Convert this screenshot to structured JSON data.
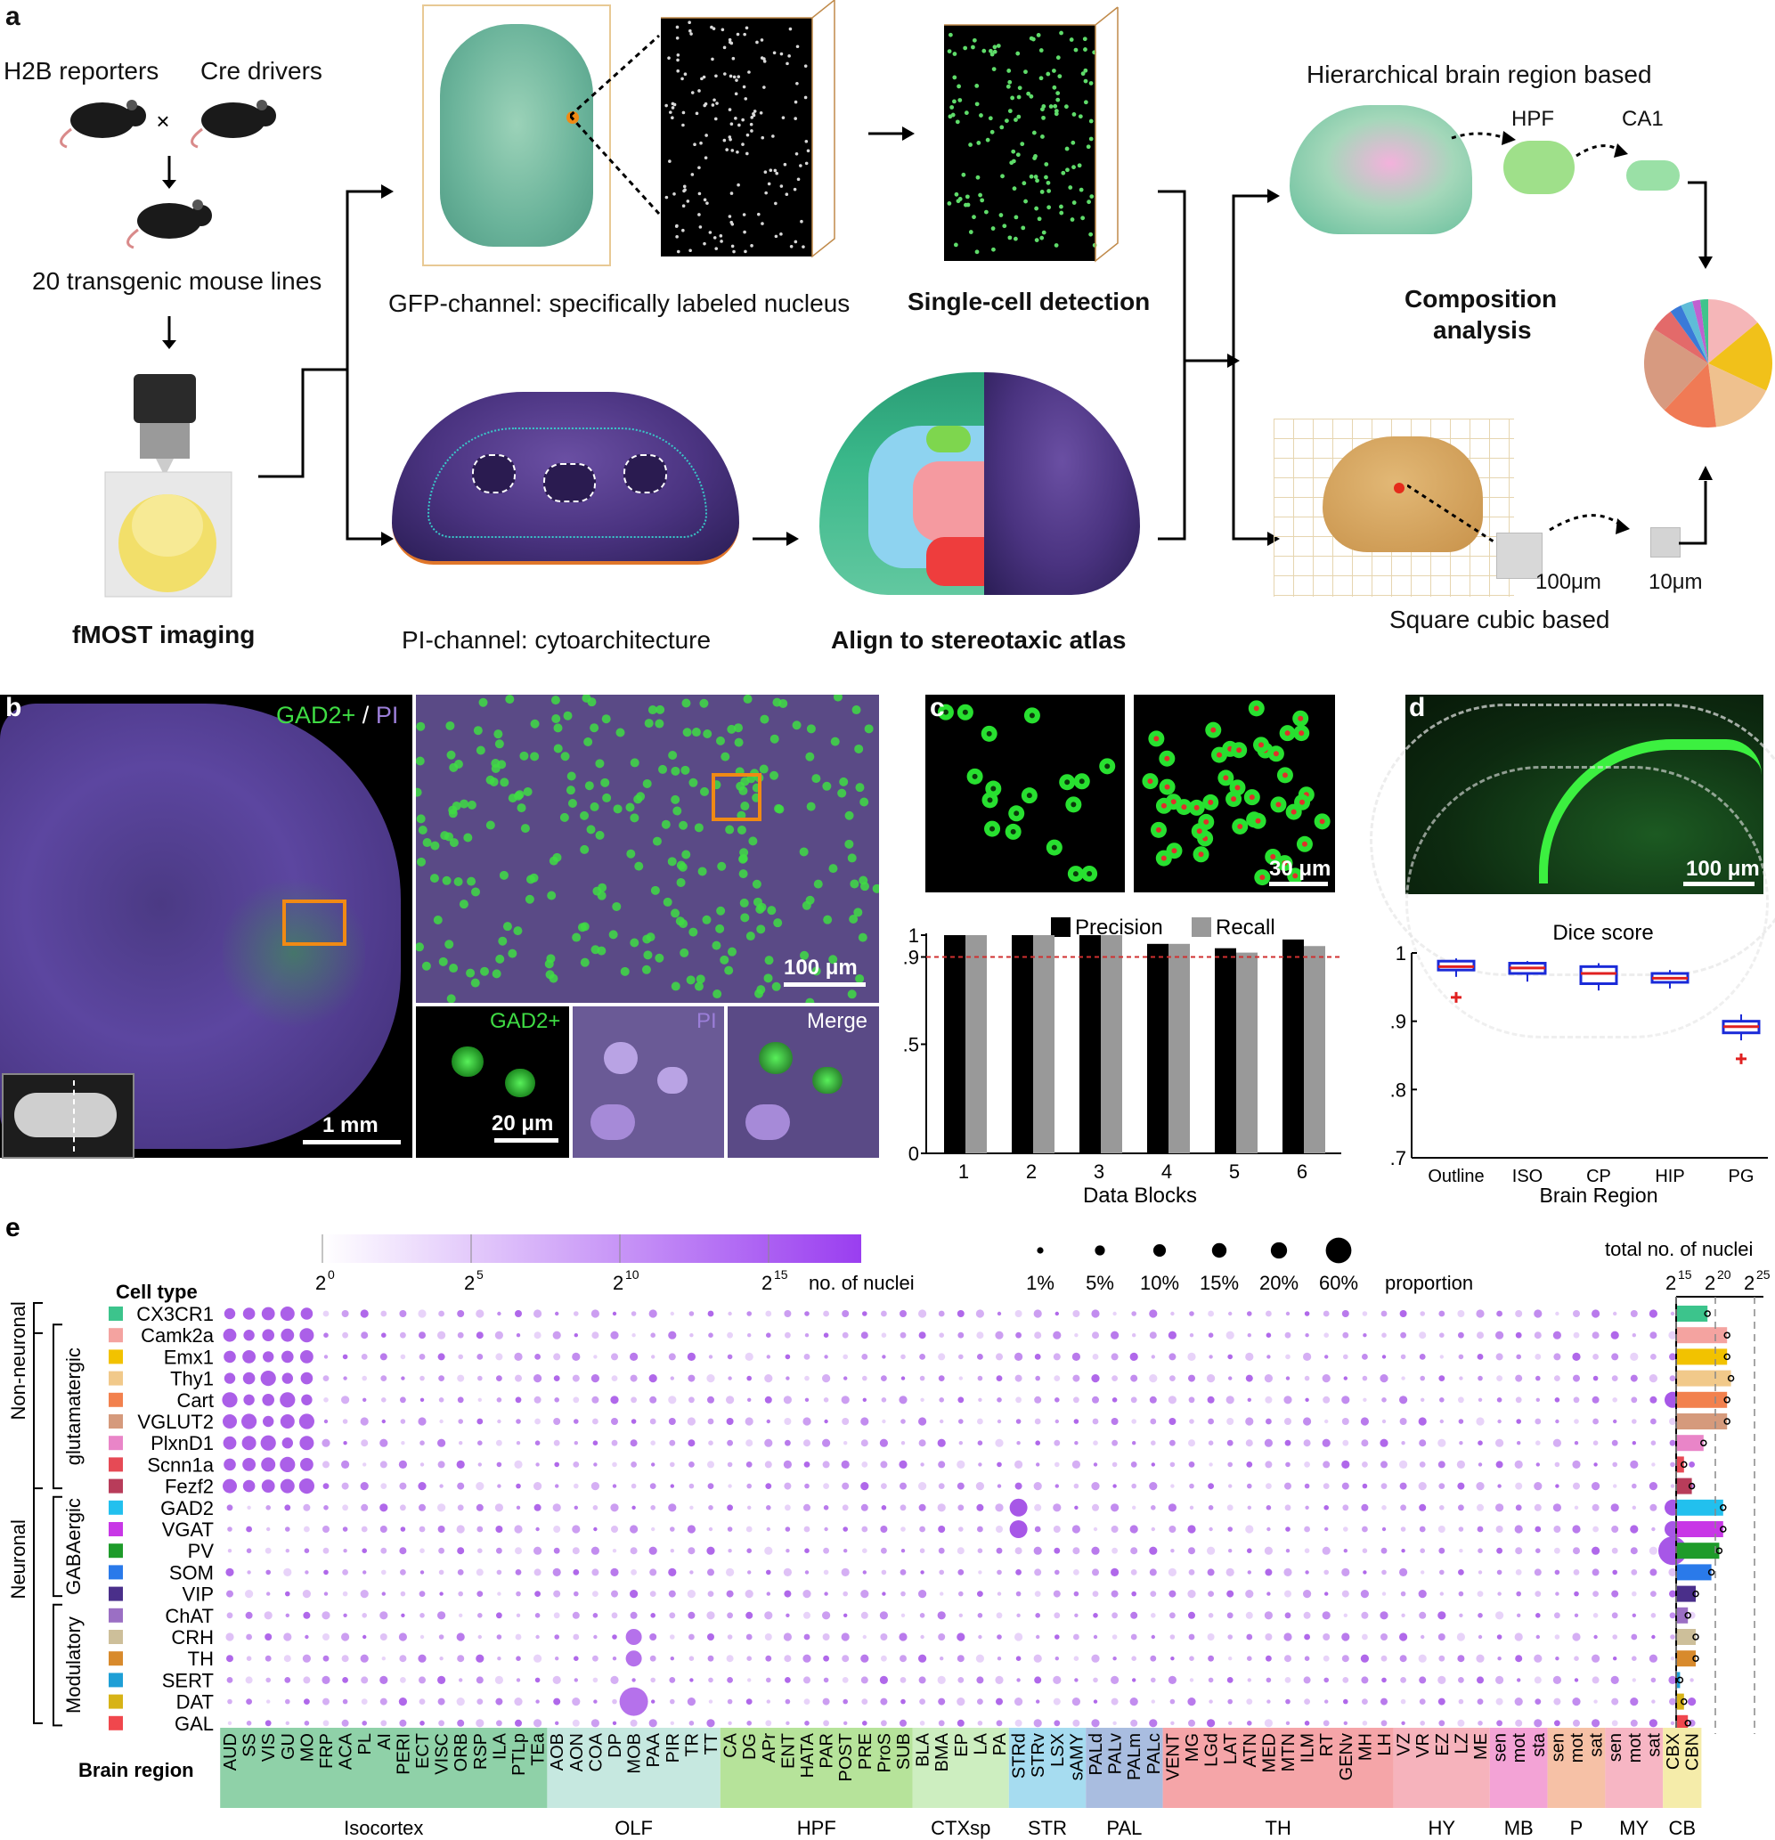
{
  "panel_a": {
    "letter": "a",
    "h2b": "H2B reporters",
    "cre": "Cre drivers",
    "times": "×",
    "lines": "20 transgenic mouse lines",
    "fmost": "fMOST imaging",
    "gfp": "GFP-channel: specifically labeled nucleus",
    "single_cell": "Single-cell detection",
    "pi": "PI-channel: cytoarchitecture",
    "align": "Align to stereotaxic atlas",
    "hier": "Hierarchical brain region based",
    "hpf": "HPF",
    "ca1": "CA1",
    "composition1": "Composition",
    "composition2": "analysis",
    "um100": "100μm",
    "um10": "10μm",
    "square": "Square cubic based"
  },
  "panel_b": {
    "letter": "b",
    "gad": "GAD2+",
    "slash": " / ",
    "pi": "PI",
    "scale_1mm": "1 mm",
    "scale_100um": "100 μm",
    "inset_gad": "GAD2+",
    "inset_pi": "PI",
    "inset_merge": "Merge",
    "scale_20um": "20 μm"
  },
  "panel_c": {
    "letter": "c",
    "scale_30um": "30 μm"
  },
  "panel_d": {
    "letter": "d",
    "scale_100um": "100 μm"
  },
  "chart_data": [
    {
      "type": "bar",
      "legend": [
        "Precision",
        "Recall"
      ],
      "categories": [
        "1",
        "2",
        "3",
        "4",
        "5",
        "6"
      ],
      "series": [
        {
          "name": "Precision",
          "values": [
            1.0,
            1.0,
            1.0,
            0.96,
            0.94,
            0.98
          ],
          "color": "#000000"
        },
        {
          "name": "Recall",
          "values": [
            1.0,
            1.0,
            1.0,
            0.96,
            0.92,
            0.95
          ],
          "color": "#999999"
        }
      ],
      "xlabel": "Data Blocks",
      "ylim": [
        0,
        1
      ],
      "yticks": [
        "0",
        ".5",
        ".9",
        "1"
      ],
      "reference_line": 0.9
    },
    {
      "type": "box",
      "title": "Dice score",
      "categories": [
        "Outline",
        "ISO",
        "CP",
        "HIP",
        "PG"
      ],
      "boxes": [
        {
          "q1": 0.975,
          "median": 0.98,
          "q3": 0.988,
          "min": 0.965,
          "max": 0.992,
          "outlier": 0.935
        },
        {
          "q1": 0.97,
          "median": 0.978,
          "q3": 0.985,
          "min": 0.958,
          "max": 0.988
        },
        {
          "q1": 0.955,
          "median": 0.97,
          "q3": 0.98,
          "min": 0.945,
          "max": 0.985
        },
        {
          "q1": 0.957,
          "median": 0.963,
          "q3": 0.97,
          "min": 0.948,
          "max": 0.975
        },
        {
          "q1": 0.883,
          "median": 0.892,
          "q3": 0.9,
          "min": 0.872,
          "max": 0.91,
          "outlier": 0.845
        }
      ],
      "xlabel": "Brain Region",
      "ylim": [
        0.7,
        1
      ],
      "yticks": [
        ".7",
        ".8",
        ".9",
        "1"
      ]
    },
    {
      "type": "scatter",
      "cell_type_header": "Cell type",
      "brain_region_header": "Brain region",
      "colorbar_ticks": [
        "2",
        "2",
        "2",
        "2"
      ],
      "colorbar_exps": [
        "0",
        "5",
        "10",
        "15"
      ],
      "colorbar_label": "no. of nuclei",
      "size_legend": [
        "1%",
        "5%",
        "10%",
        "15%",
        "20%",
        "60%"
      ],
      "size_values": [
        1,
        5,
        10,
        15,
        20,
        60
      ],
      "size_label": "proportion",
      "total_label": "total no. of nuclei",
      "total_ticks": [
        "2",
        "2",
        "2"
      ],
      "total_exps": [
        "15",
        "20",
        "25"
      ],
      "groups": [
        {
          "label": "Non-neuronal"
        },
        {
          "label": "Neuronal"
        },
        {
          "label": "glutamatergic"
        },
        {
          "label": "GABAergic"
        },
        {
          "label": "Modulatory"
        }
      ],
      "cell_types": [
        {
          "name": "CX3CR1",
          "color": "#3cc48c",
          "total": 19.0
        },
        {
          "name": "Camk2a",
          "color": "#f4a3a0",
          "total": 21.5
        },
        {
          "name": "Emx1",
          "color": "#f2c200",
          "total": 21.5
        },
        {
          "name": "Thy1",
          "color": "#f1c98a",
          "total": 22.0
        },
        {
          "name": "Cart",
          "color": "#f2814e",
          "total": 21.5
        },
        {
          "name": "VGLUT2",
          "color": "#d59a7c",
          "total": 21.5
        },
        {
          "name": "PlxnD1",
          "color": "#e985c8",
          "total": 18.5
        },
        {
          "name": "Scnn1a",
          "color": "#e64a55",
          "total": 16.0
        },
        {
          "name": "Fezf2",
          "color": "#b83c5a",
          "total": 17.0
        },
        {
          "name": "GAD2",
          "color": "#22c0ee",
          "total": 21.0
        },
        {
          "name": "VGAT",
          "color": "#c837e6",
          "total": 21.0
        },
        {
          "name": "PV",
          "color": "#1e9b2a",
          "total": 20.5
        },
        {
          "name": "SOM",
          "color": "#2a7aea",
          "total": 19.5
        },
        {
          "name": "VIP",
          "color": "#4a2f8a",
          "total": 17.5
        },
        {
          "name": "ChAT",
          "color": "#9b6fc4",
          "total": 16.5
        },
        {
          "name": "CRH",
          "color": "#cdbf9a",
          "total": 17.5
        },
        {
          "name": "TH",
          "color": "#d88a2c",
          "total": 17.5
        },
        {
          "name": "SERT",
          "color": "#1e9fd6",
          "total": 15.5
        },
        {
          "name": "DAT",
          "color": "#d7b316",
          "total": 16.0
        },
        {
          "name": "GAL",
          "color": "#f0474d",
          "total": 16.5
        }
      ],
      "regions": [
        "AUD",
        "SS",
        "VIS",
        "GU",
        "MO",
        "FRP",
        "ACA",
        "PL",
        "AI",
        "PERI",
        "ECT",
        "VISC",
        "ORB",
        "RSP",
        "ILA",
        "PTLp",
        "TEa",
        "AOB",
        "AON",
        "COA",
        "DP",
        "MOB",
        "PAA",
        "PIR",
        "TR",
        "TT",
        "CA",
        "DG",
        "APr",
        "ENT",
        "HATA",
        "PAR",
        "POST",
        "PRE",
        "ProS",
        "SUB",
        "BLA",
        "BMA",
        "EP",
        "LA",
        "PA",
        "STRd",
        "STRv",
        "LSX",
        "sAMY",
        "PALd",
        "PALv",
        "PALm",
        "PALc",
        "VENT",
        "MG",
        "LGd",
        "LAT",
        "ATN",
        "MED",
        "MTN",
        "ILM",
        "RT",
        "GENv",
        "MH",
        "LH",
        "VZ",
        "VR",
        "EZ",
        "LZ",
        "ME",
        "sen",
        "mot",
        "sta",
        "sen",
        "mot",
        "sat",
        "sen",
        "mot",
        "sat",
        "CBX",
        "CBN"
      ],
      "region_groups": [
        {
          "name": "Isocortex",
          "start": 0,
          "end": 16,
          "color": "#8fd1a8"
        },
        {
          "name": "OLF",
          "start": 17,
          "end": 25,
          "color": "#c6e8e0"
        },
        {
          "name": "HPF",
          "start": 26,
          "end": 35,
          "color": "#b6e39a"
        },
        {
          "name": "CTXsp",
          "start": 36,
          "end": 40,
          "color": "#cdeec0"
        },
        {
          "name": "STR",
          "start": 41,
          "end": 44,
          "color": "#a6dcf0"
        },
        {
          "name": "PAL",
          "start": 45,
          "end": 48,
          "color": "#a9bde0"
        },
        {
          "name": "TH",
          "start": 49,
          "end": 60,
          "color": "#f5a5a8"
        },
        {
          "name": "HY",
          "start": 61,
          "end": 65,
          "color": "#f6b3bc"
        },
        {
          "name": "MB",
          "start": 66,
          "end": 68,
          "color": "#f3a3d6"
        },
        {
          "name": "P",
          "start": 69,
          "end": 71,
          "color": "#f6c1a6"
        },
        {
          "name": "MY",
          "start": 72,
          "end": 74,
          "color": "#f7b6c4"
        },
        {
          "name": "CB",
          "start": 75,
          "end": 76,
          "color": "#f5ecaa"
        }
      ]
    }
  ]
}
